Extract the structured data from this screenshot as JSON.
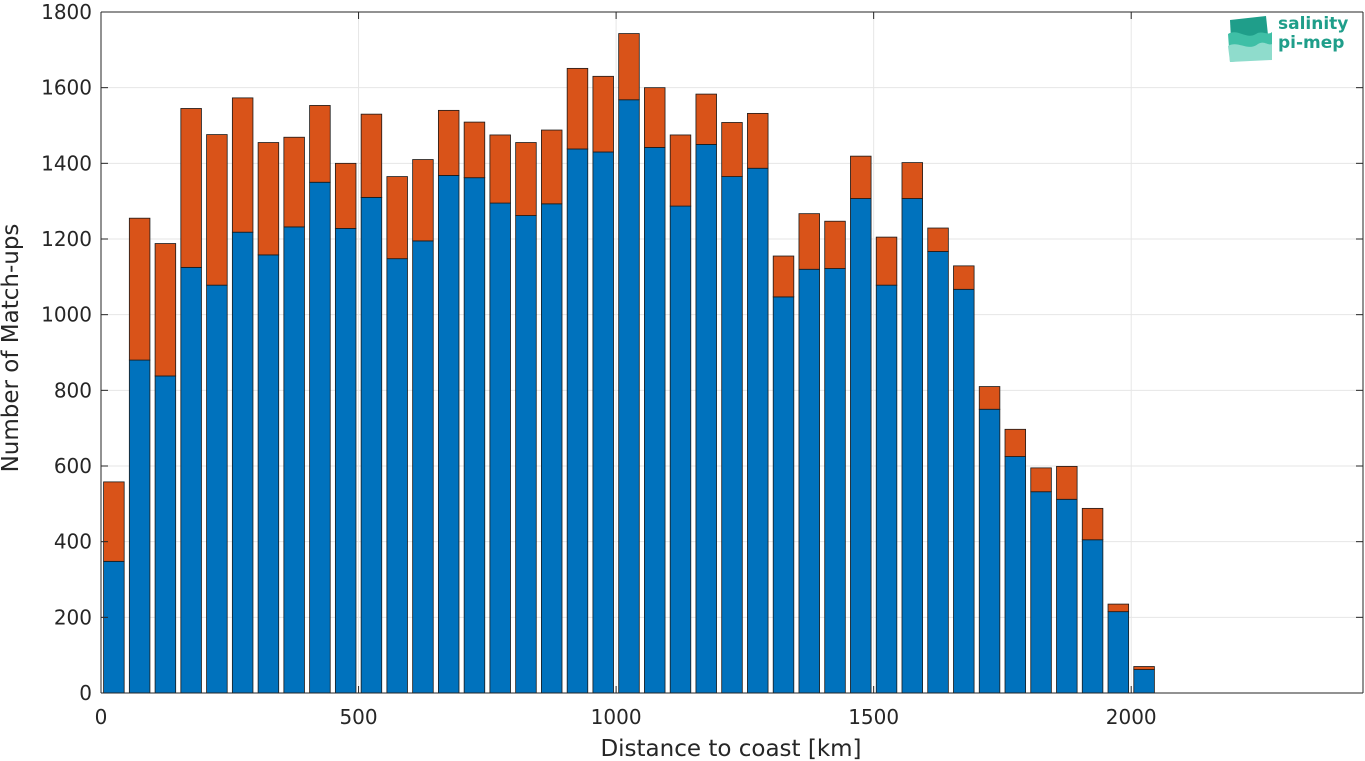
{
  "logo": {
    "line1": "salinity",
    "line2": "pi-mep"
  },
  "chart_data": {
    "type": "bar",
    "stacked": true,
    "xlabel": "Distance to coast [km]",
    "ylabel": "Number of Match-ups",
    "xlim": [
      0,
      2450
    ],
    "ylim": [
      0,
      1800
    ],
    "xticks": [
      0,
      500,
      1000,
      1500,
      2000
    ],
    "yticks": [
      0,
      200,
      400,
      600,
      800,
      1000,
      1200,
      1400,
      1600,
      1800
    ],
    "grid": true,
    "bin_width": 50,
    "x": [
      25,
      75,
      125,
      175,
      225,
      275,
      325,
      375,
      425,
      475,
      525,
      575,
      625,
      675,
      725,
      775,
      825,
      875,
      925,
      975,
      1025,
      1075,
      1125,
      1175,
      1225,
      1275,
      1325,
      1375,
      1425,
      1475,
      1525,
      1575,
      1625,
      1675,
      1725,
      1775,
      1825,
      1875,
      1925,
      1975,
      2025
    ],
    "series": [
      {
        "color": "#0072bd",
        "values": [
          348,
          880,
          838,
          1125,
          1078,
          1218,
          1158,
          1232,
          1350,
          1228,
          1310,
          1148,
          1195,
          1368,
          1362,
          1295,
          1262,
          1293,
          1438,
          1430,
          1568,
          1442,
          1287,
          1450,
          1365,
          1387,
          1047,
          1120,
          1122,
          1307,
          1078,
          1307,
          1167,
          1067,
          750,
          625,
          532,
          512,
          405,
          215,
          62
        ]
      },
      {
        "color": "#d95319",
        "values": [
          210,
          375,
          350,
          420,
          398,
          355,
          297,
          237,
          203,
          172,
          220,
          217,
          215,
          172,
          147,
          180,
          193,
          195,
          213,
          200,
          175,
          158,
          188,
          133,
          143,
          145,
          108,
          147,
          125,
          112,
          127,
          95,
          62,
          62,
          60,
          72,
          63,
          87,
          83,
          20,
          8
        ]
      }
    ]
  }
}
